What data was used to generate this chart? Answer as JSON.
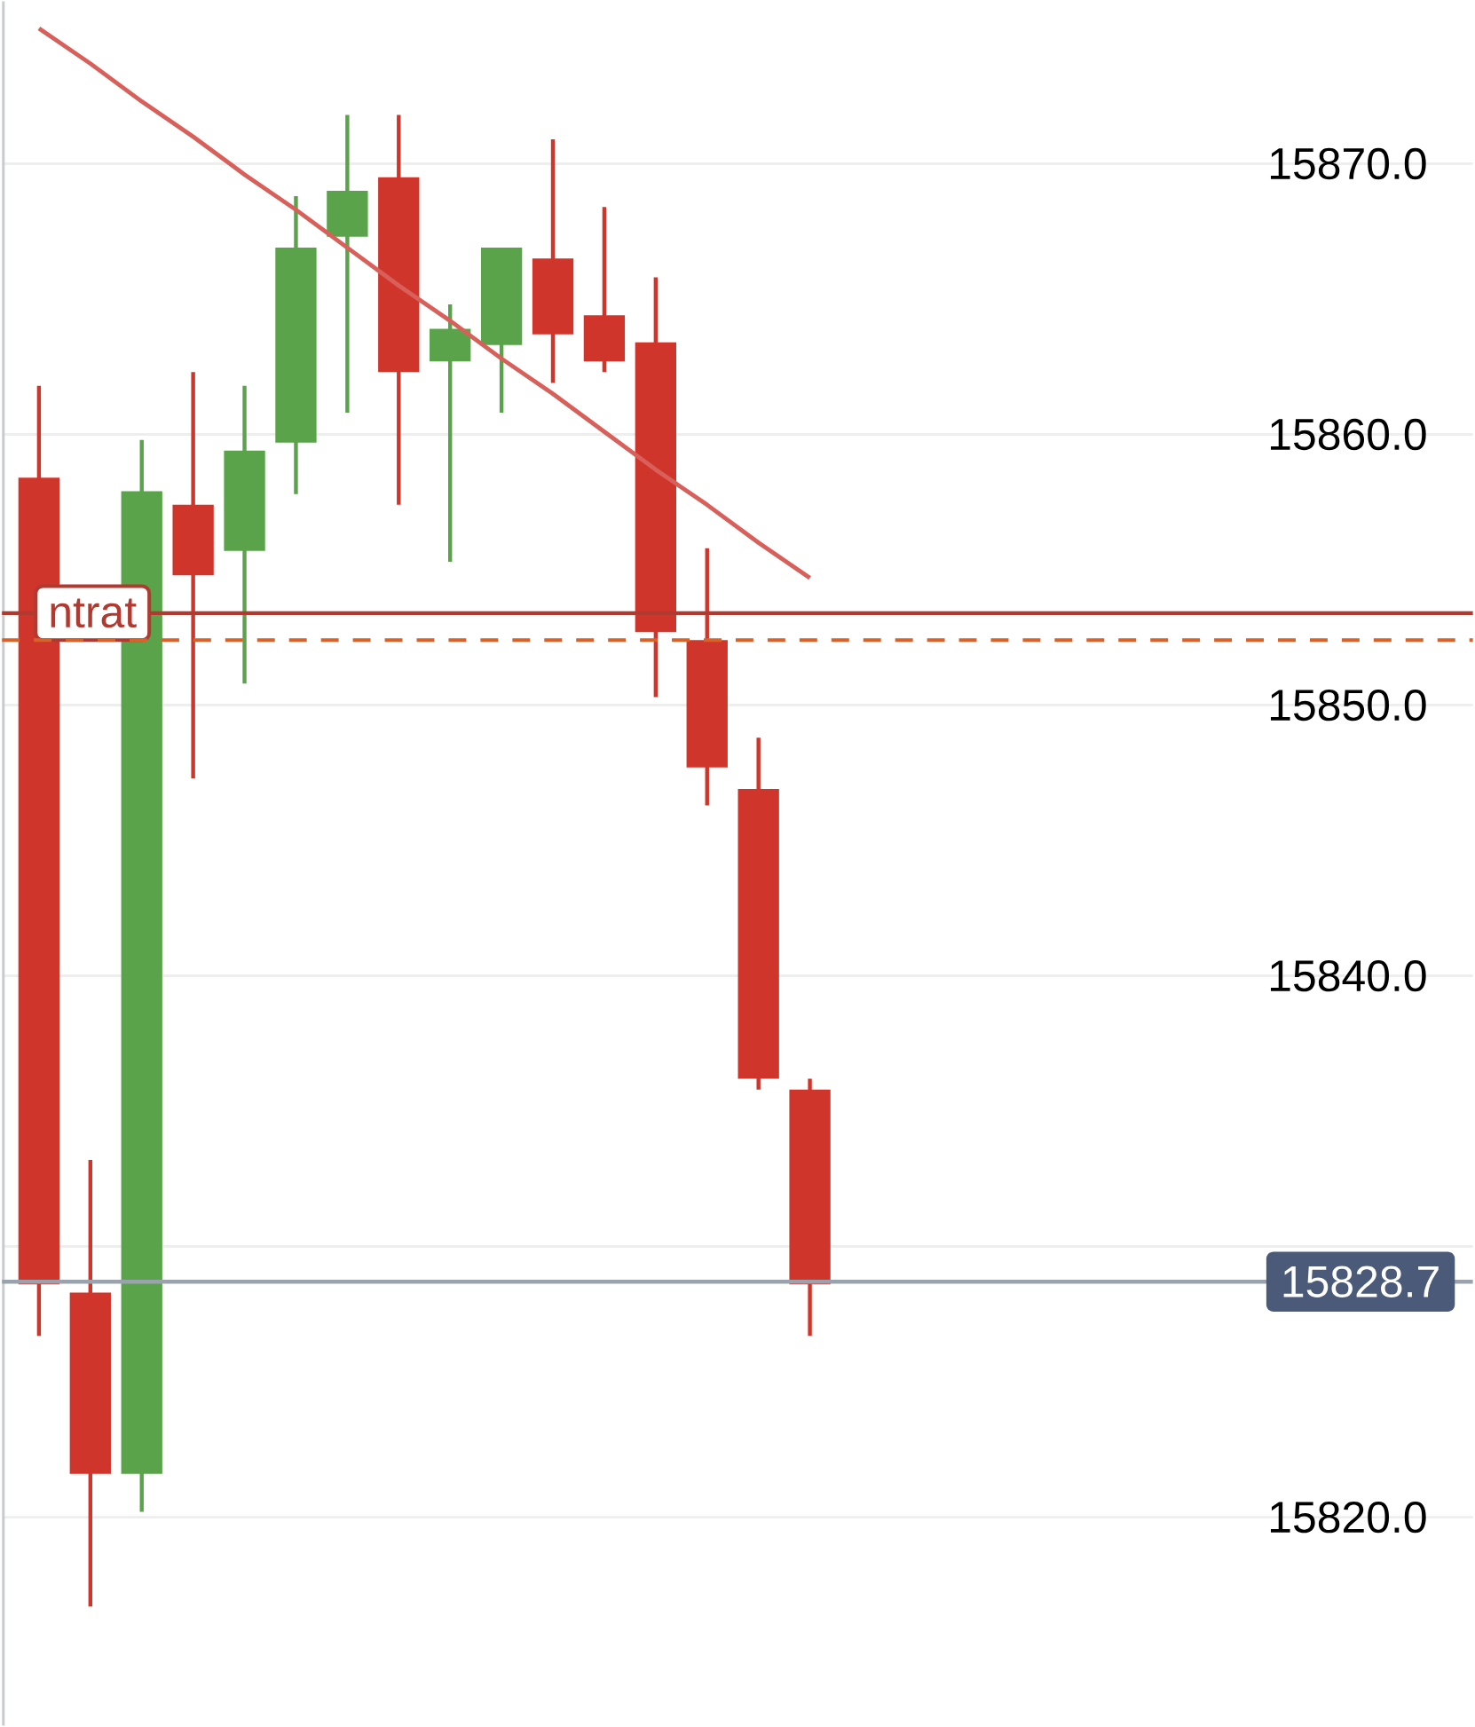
{
  "chart_data": {
    "type": "candlestick",
    "categories": [
      null,
      null,
      null,
      null,
      null,
      null,
      null,
      null,
      null,
      null,
      null,
      null,
      null,
      null,
      null,
      null
    ],
    "ohlc": [
      [
        15858.4,
        15861.8,
        15826.7,
        15828.6
      ],
      [
        15828.3,
        15833.2,
        15816.7,
        15821.6
      ],
      [
        15821.6,
        15859.8,
        15820.2,
        15857.9
      ],
      [
        15857.4,
        15862.3,
        15847.3,
        15854.8
      ],
      [
        15855.7,
        15861.8,
        15850.8,
        15859.4
      ],
      [
        15859.7,
        15868.8,
        15857.8,
        15866.9
      ],
      [
        15867.3,
        15871.8,
        15860.8,
        15869.0
      ],
      [
        15869.5,
        15871.8,
        15857.4,
        15862.3
      ],
      [
        15862.7,
        15864.8,
        15855.3,
        15863.9
      ],
      [
        15863.3,
        15866.9,
        15860.8,
        15866.9
      ],
      [
        15866.5,
        15870.9,
        15861.9,
        15863.7
      ],
      [
        15864.4,
        15868.4,
        15862.3,
        15862.7
      ],
      [
        15863.4,
        15865.8,
        15850.3,
        15852.7
      ],
      [
        15852.4,
        15855.8,
        15846.3,
        15847.7
      ],
      [
        15846.9,
        15848.8,
        15835.8,
        15836.2
      ],
      [
        15835.8,
        15836.2,
        15826.7,
        15828.6
      ]
    ],
    "colors": [
      "#d0352b",
      "#d0352b",
      "#5aa34a",
      "#d0352b",
      "#5aa34a",
      "#5aa34a",
      "#5aa34a",
      "#d0352b",
      "#5aa34a",
      "#5aa34a",
      "#d0352b",
      "#d0352b",
      "#d0352b",
      "#d0352b",
      "#d0352b",
      "#d0352b"
    ],
    "series": [
      {
        "type": "line",
        "color": "#d9605a",
        "values": [
          15875.0,
          15873.7,
          15872.3,
          15871.0,
          15869.6,
          15868.3,
          15866.9,
          15865.5,
          15864.2,
          15862.8,
          15861.5,
          15860.1,
          15858.7,
          15857.4,
          15856.0,
          15854.7
        ]
      }
    ],
    "ylim": [
      15812.3,
      15876.0
    ],
    "yticks": [
      {
        "value": 15820,
        "label": "15820.0"
      },
      {
        "value": 15830,
        "label": null
      },
      {
        "value": 15840,
        "label": "15840.0"
      },
      {
        "value": 15850,
        "label": "15850.0"
      },
      {
        "value": 15860,
        "label": "15860.0"
      },
      {
        "value": 15870,
        "label": "15870.0"
      }
    ],
    "ref_lines": [
      {
        "axis": "y",
        "value": 15853.4,
        "label": "ntrat",
        "color": "#b03a30",
        "line_style": "solid"
      },
      {
        "axis": "y",
        "value": 15852.4,
        "color": "#d9622b",
        "line_style": "dashed"
      },
      {
        "axis": "y",
        "value": 15828.7,
        "label": "15828.7",
        "color": "#9aa3ad",
        "line_style": "solid"
      }
    ],
    "grid": "y",
    "tick_labels": "y"
  }
}
